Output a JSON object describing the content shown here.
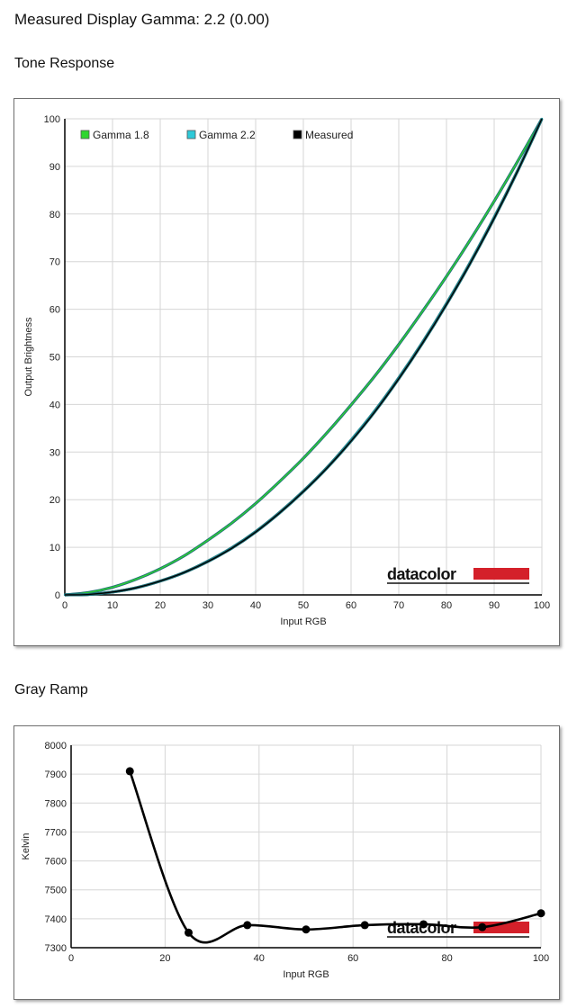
{
  "header": {
    "title": "Measured Display Gamma: 2.2 (0.00)",
    "tone_section": "Tone Response",
    "gray_section": "Gray Ramp"
  },
  "brand": {
    "name": "datacolor",
    "bar_color": "#d4202a"
  },
  "chart_data": [
    {
      "type": "line",
      "title": "",
      "xlabel": "Input RGB",
      "ylabel": "Output Brightness",
      "xlim": [
        0,
        100
      ],
      "ylim": [
        0,
        100
      ],
      "xticks": [
        0,
        10,
        20,
        30,
        40,
        50,
        60,
        70,
        80,
        90,
        100
      ],
      "yticks": [
        0,
        10,
        20,
        30,
        40,
        50,
        60,
        70,
        80,
        90,
        100
      ],
      "grid": true,
      "legend_position": "top-left",
      "series": [
        {
          "name": "Gamma 1.8",
          "color": "#2fd62f",
          "x": [
            0,
            5,
            10,
            15,
            20,
            25,
            30,
            35,
            40,
            45,
            50,
            55,
            60,
            65,
            70,
            75,
            80,
            85,
            90,
            95,
            100
          ],
          "values": [
            0,
            0.5,
            1.6,
            3.3,
            5.5,
            8.2,
            11.5,
            15.1,
            19.2,
            23.8,
            28.7,
            34.1,
            39.9,
            46.0,
            52.6,
            59.6,
            66.9,
            74.6,
            82.7,
            91.2,
            100
          ]
        },
        {
          "name": "Gamma 2.2",
          "color": "#2ec9d8",
          "x": [
            0,
            5,
            10,
            15,
            20,
            25,
            30,
            35,
            40,
            45,
            50,
            55,
            60,
            65,
            70,
            75,
            80,
            85,
            90,
            95,
            100
          ],
          "values": [
            0,
            0.1,
            0.6,
            1.5,
            2.9,
            4.7,
            7.1,
            9.9,
            13.3,
            17.3,
            21.8,
            26.8,
            32.5,
            38.7,
            45.6,
            53.1,
            61.2,
            69.9,
            79.3,
            89.3,
            100
          ]
        },
        {
          "name": "Measured",
          "color": "#000000",
          "x": [
            0,
            5,
            10,
            15,
            20,
            25,
            30,
            35,
            40,
            45,
            50,
            55,
            60,
            65,
            70,
            75,
            80,
            85,
            90,
            95,
            100
          ],
          "values": [
            0,
            0.1,
            0.6,
            1.5,
            2.9,
            4.7,
            7.0,
            9.8,
            13.2,
            17.2,
            21.7,
            26.7,
            32.3,
            38.5,
            45.4,
            52.9,
            61.0,
            69.7,
            79.1,
            89.2,
            100
          ]
        }
      ]
    },
    {
      "type": "line",
      "title": "",
      "xlabel": "Input RGB",
      "ylabel": "Kelvin",
      "xlim": [
        0,
        100
      ],
      "ylim": [
        7300,
        8000
      ],
      "xticks": [
        0,
        20,
        40,
        60,
        80,
        100
      ],
      "yticks": [
        7300,
        7400,
        7500,
        7600,
        7700,
        7800,
        7900,
        8000
      ],
      "grid": true,
      "series": [
        {
          "name": "",
          "color": "#000000",
          "x": [
            12.5,
            25,
            37.5,
            50,
            62.5,
            75,
            87.5,
            100
          ],
          "values": [
            7910,
            7352,
            7378,
            7363,
            7378,
            7381,
            7371,
            7419
          ]
        }
      ]
    }
  ]
}
